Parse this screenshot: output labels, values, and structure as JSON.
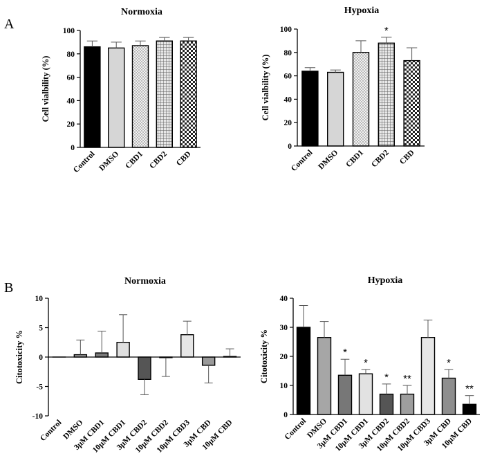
{
  "panels": {
    "A": "A",
    "B": "B"
  },
  "chart_data": [
    {
      "type": "bar",
      "title": "Normoxia",
      "ylabel": "Cell vialbility (%)",
      "xlabel": "",
      "categories": [
        "Control",
        "DMSO",
        "CBD1",
        "CBD2",
        "CBD"
      ],
      "values": [
        86,
        85,
        87,
        91,
        91
      ],
      "errors": [
        5,
        5,
        4,
        3,
        3
      ],
      "significance": [
        "",
        "",
        "",
        "",
        ""
      ],
      "fills": [
        "solid-black",
        "light-grey",
        "dotted",
        "grid",
        "checker"
      ],
      "ylim": [
        0,
        100
      ],
      "yticks": [
        0,
        20,
        40,
        60,
        80,
        100
      ]
    },
    {
      "type": "bar",
      "title": "Hypoxia",
      "ylabel": "Cell vialbility (%)",
      "xlabel": "",
      "categories": [
        "Control",
        "DMSO",
        "CBD1",
        "CBD2",
        "CBD"
      ],
      "values": [
        64,
        63,
        80,
        88,
        73
      ],
      "errors": [
        3,
        2,
        10,
        5,
        11
      ],
      "significance": [
        "",
        "",
        "",
        "*",
        ""
      ],
      "fills": [
        "solid-black",
        "light-grey",
        "dotted",
        "grid",
        "checker"
      ],
      "ylim": [
        0,
        100
      ],
      "yticks": [
        0,
        20,
        40,
        60,
        80,
        100
      ]
    },
    {
      "type": "bar",
      "title": "Normoxia",
      "ylabel": "Citotoxicity %",
      "xlabel": "",
      "categories": [
        "Control",
        "DMSO",
        "3µM CBD1",
        "10µM CBD1",
        "3µM CBD2",
        "10µM CBD2",
        "10µM CBD3",
        "3µM CBD",
        "10µM CBD"
      ],
      "values": [
        0,
        0.4,
        0.7,
        2.5,
        -3.8,
        -0.1,
        3.8,
        -1.4,
        0.1
      ],
      "errors": [
        0,
        2.5,
        3.7,
        4.7,
        2.6,
        3.2,
        2.3,
        3.0,
        1.3
      ],
      "significance": [
        "",
        "",
        "",
        "",
        "",
        "",
        "",
        "",
        ""
      ],
      "colors": [
        "#ffffff",
        "#aaaaaa",
        "#7a7a7a",
        "#e0e0e0",
        "#555555",
        "#a0a0a0",
        "#e6e6e6",
        "#9a9a9a",
        "#111111"
      ],
      "ylim": [
        -10,
        10
      ],
      "yticks": [
        -10,
        -5,
        0,
        5,
        10
      ]
    },
    {
      "type": "bar",
      "title": "Hypoxia",
      "ylabel": "Citotoxicity %",
      "xlabel": "",
      "categories": [
        "Control",
        "DMSO",
        "3µM CBD1",
        "10µM CBD1",
        "3µM CBD2",
        "10µM CBD2",
        "10µM CBD3",
        "3µM CBD",
        "10µM CBD"
      ],
      "values": [
        30,
        26.5,
        13.5,
        14,
        7,
        7,
        26.5,
        12.5,
        3.5
      ],
      "errors": [
        7.5,
        5.5,
        5.5,
        1.5,
        3.5,
        3,
        6,
        3,
        3
      ],
      "significance": [
        "",
        "",
        "*",
        "*",
        "*",
        "**",
        "",
        "*",
        "**"
      ],
      "colors": [
        "#000000",
        "#a6a6a6",
        "#777777",
        "#e2e2e2",
        "#555555",
        "#9e9e9e",
        "#e6e6e6",
        "#8e8e8e",
        "#000000"
      ],
      "ylim": [
        0,
        40
      ],
      "yticks": [
        0,
        10,
        20,
        30,
        40
      ]
    }
  ]
}
